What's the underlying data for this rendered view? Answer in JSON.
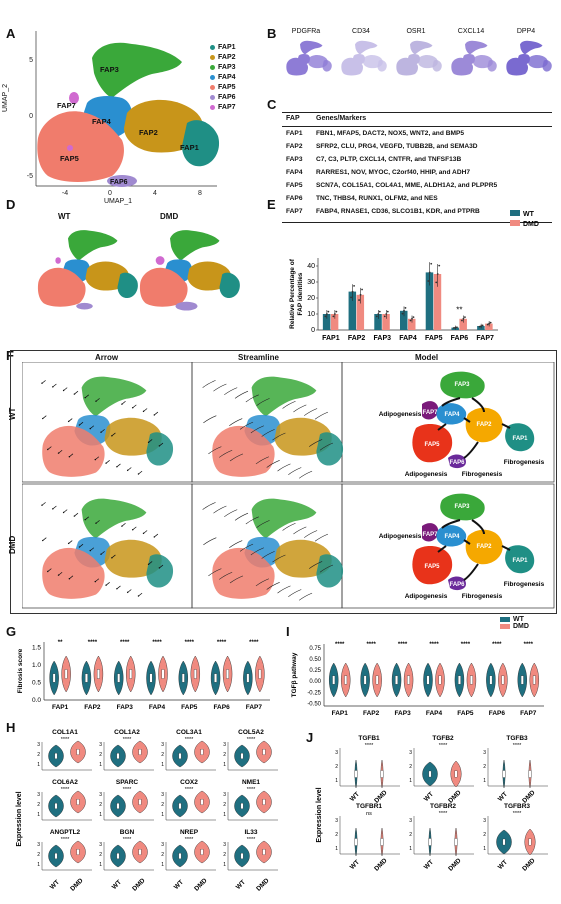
{
  "panels": {
    "A": "A",
    "B": "B",
    "C": "C",
    "D": "D",
    "E": "E",
    "F": "F",
    "G": "G",
    "H": "H",
    "I": "I",
    "J": "J"
  },
  "panelA": {
    "xlabel": "UMAP_1",
    "ylabel": "UMAP_2",
    "xticks": [
      "-4",
      "0",
      "4",
      "8"
    ],
    "yticks": [
      "5",
      "0",
      "-5"
    ],
    "clusters": [
      {
        "name": "FAP1",
        "color": "#1f8f85"
      },
      {
        "name": "FAP2",
        "color": "#c8951a"
      },
      {
        "name": "FAP3",
        "color": "#3aa83a"
      },
      {
        "name": "FAP4",
        "color": "#2a8fd0"
      },
      {
        "name": "FAP5",
        "color": "#f07c6c"
      },
      {
        "name": "FAP6",
        "color": "#a08ad0"
      },
      {
        "name": "FAP7",
        "color": "#d06ad0"
      }
    ]
  },
  "panelB": {
    "markers": [
      "PDGFRa",
      "CD34",
      "OSR1",
      "CXCL14",
      "DPP4"
    ]
  },
  "panelC": {
    "header": {
      "fap": "FAP",
      "genes": "Genes/Markers"
    },
    "rows": [
      {
        "fap": "FAP1",
        "genes": "FBN1, MFAP5, DACT2, NOX5, WNT2, and BMP5"
      },
      {
        "fap": "FAP2",
        "genes": "SFRP2, CLU, PRG4, VEGFD, TUBB2B, and SEMA3D"
      },
      {
        "fap": "FAP3",
        "genes": "C7, C3, PLTP, CXCL14, CNTFR, and TNFSF13B"
      },
      {
        "fap": "FAP4",
        "genes": "RARRES1, NOV, MYOC, C2orf40, HHIP, and ADH7"
      },
      {
        "fap": "FAP5",
        "genes": "SCN7A, COL15A1, COL4A1, MME, ALDH1A2, and PLPPR5"
      },
      {
        "fap": "FAP6",
        "genes": "TNC, THBS4, RUNX1, OLFM2, and NES"
      },
      {
        "fap": "FAP7",
        "genes": "FABP4, RNASE1, CD36, SLCO1B1, KDR, and PTPRB"
      }
    ]
  },
  "panelD": {
    "wt": "WT",
    "dmd": "DMD"
  },
  "chart_data": [
    {
      "panel": "E",
      "type": "bar",
      "categories": [
        "FAP1",
        "FAP2",
        "FAP3",
        "FAP4",
        "FAP5",
        "FAP6",
        "FAP7"
      ],
      "series": [
        {
          "name": "WT",
          "color": "#1f6f80",
          "values": [
            10,
            24,
            10,
            12,
            36,
            1.5,
            2.5
          ]
        },
        {
          "name": "DMD",
          "color": "#f08a80",
          "values": [
            10,
            22,
            10,
            7,
            35,
            7,
            4
          ]
        }
      ],
      "ylabel": "Relative Percentage of FAP identities",
      "ylim": [
        0,
        45
      ],
      "yticks": [
        0,
        10,
        20,
        30,
        40
      ],
      "annotations": [
        {
          "category": "FAP6",
          "text": "**"
        }
      ]
    },
    {
      "panel": "G",
      "type": "violin",
      "categories": [
        "FAP1",
        "FAP2",
        "FAP3",
        "FAP4",
        "FAP5",
        "FAP6",
        "FAP7"
      ],
      "series": [
        {
          "name": "WT",
          "color": "#1f6f80"
        },
        {
          "name": "DMD",
          "color": "#f08a80"
        }
      ],
      "ylabel": "Fibrosis score",
      "yticks": [
        "0.0",
        "0.5",
        "1.0",
        "1.5"
      ],
      "significance": [
        "**",
        "****",
        "****",
        "****",
        "****",
        "****",
        "****"
      ]
    },
    {
      "panel": "I",
      "type": "violin",
      "categories": [
        "FAP1",
        "FAP2",
        "FAP3",
        "FAP4",
        "FAP5",
        "FAP6",
        "FAP7"
      ],
      "series": [
        {
          "name": "WT",
          "color": "#1f6f80"
        },
        {
          "name": "DMD",
          "color": "#f08a80"
        }
      ],
      "ylabel": "TGFβ pathway",
      "yticks": [
        "0.75",
        "0.50",
        "0.25",
        "0.00",
        "-0.25",
        "-0.50"
      ],
      "significance": [
        "****",
        "****",
        "****",
        "****",
        "****",
        "****",
        "****"
      ]
    }
  ],
  "panelF": {
    "cols": [
      "Arrow",
      "Streamline",
      "Model"
    ],
    "rows": [
      "WT",
      "DMD"
    ],
    "model_labels": {
      "adipogenesis": "Adipogenesis",
      "fibrogenesis": "Fibrogenesis"
    }
  },
  "panelH": {
    "ylabel": "Expression level",
    "genes": [
      {
        "name": "COL1A1",
        "sig": "****"
      },
      {
        "name": "COL1A2",
        "sig": "****"
      },
      {
        "name": "COL3A1",
        "sig": "****"
      },
      {
        "name": "COL5A2",
        "sig": "****"
      },
      {
        "name": "COL6A2",
        "sig": "****"
      },
      {
        "name": "SPARC",
        "sig": "****"
      },
      {
        "name": "COX2",
        "sig": "****"
      },
      {
        "name": "NME1",
        "sig": "****"
      },
      {
        "name": "ANGPTL2",
        "sig": "****"
      },
      {
        "name": "BGN",
        "sig": "****"
      },
      {
        "name": "NREP",
        "sig": "****"
      },
      {
        "name": "IL33",
        "sig": "****"
      }
    ],
    "xlabels": [
      "WT",
      "DMD"
    ]
  },
  "panelJ": {
    "ylabel": "Expression level",
    "genes": [
      {
        "name": "TGFB1",
        "sig": "****"
      },
      {
        "name": "TGFB2",
        "sig": "****"
      },
      {
        "name": "TGFB3",
        "sig": "****"
      },
      {
        "name": "TGFBR1",
        "sig": "ns"
      },
      {
        "name": "TGFBR2",
        "sig": "****"
      },
      {
        "name": "TGFBR3",
        "sig": "****"
      }
    ],
    "xlabels": [
      "WT",
      "DMD"
    ]
  },
  "legend": {
    "wt": "WT",
    "dmd": "DMD"
  }
}
